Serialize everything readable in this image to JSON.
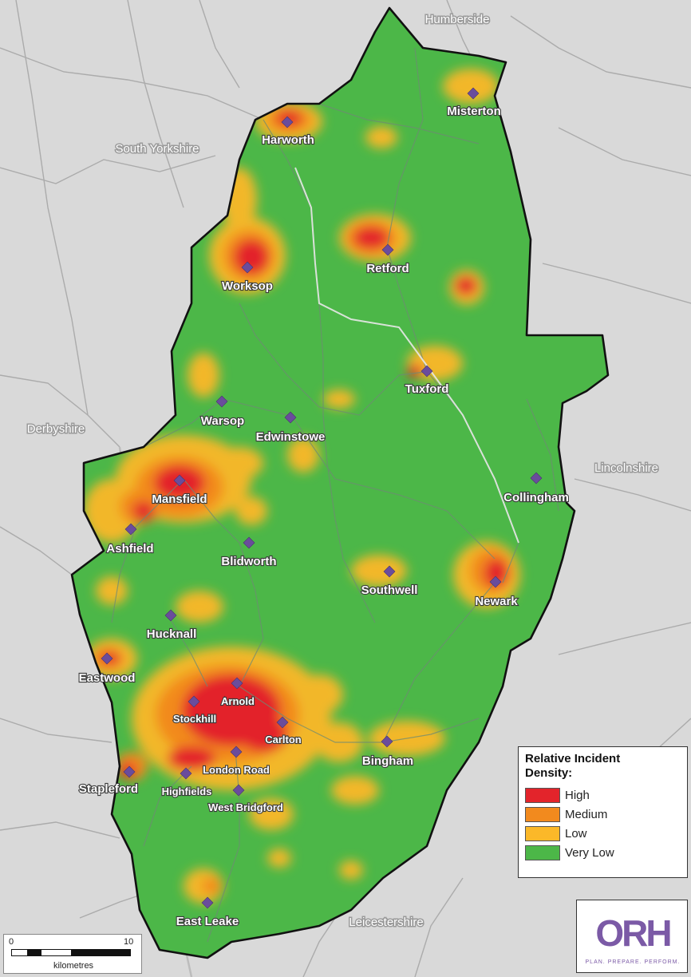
{
  "regions": [
    {
      "name": "Humberside"
    },
    {
      "name": "South Yorkshire"
    },
    {
      "name": "Derbyshire"
    },
    {
      "name": "Lincolnshire"
    },
    {
      "name": "Leicestershire"
    }
  ],
  "towns": [
    {
      "name": "Harworth"
    },
    {
      "name": "Misterton"
    },
    {
      "name": "Retford"
    },
    {
      "name": "Worksop"
    },
    {
      "name": "Tuxford"
    },
    {
      "name": "Warsop"
    },
    {
      "name": "Edwinstowe"
    },
    {
      "name": "Mansfield"
    },
    {
      "name": "Collingham"
    },
    {
      "name": "Ashfield"
    },
    {
      "name": "Blidworth"
    },
    {
      "name": "Southwell"
    },
    {
      "name": "Newark"
    },
    {
      "name": "Hucknall"
    },
    {
      "name": "Eastwood"
    },
    {
      "name": "Arnold"
    },
    {
      "name": "Stockhill"
    },
    {
      "name": "Carlton"
    },
    {
      "name": "Bingham"
    },
    {
      "name": "London Road"
    },
    {
      "name": "Stapleford"
    },
    {
      "name": "Highfields"
    },
    {
      "name": "West Bridgford"
    },
    {
      "name": "East Leake"
    }
  ],
  "legend": {
    "title_line1": "Relative Incident",
    "title_line2": "Density:",
    "items": [
      {
        "label": "High",
        "color": "#e3242b"
      },
      {
        "label": "Medium",
        "color": "#f28a1e"
      },
      {
        "label": "Low",
        "color": "#fbb829"
      },
      {
        "label": "Very Low",
        "color": "#4cb748"
      }
    ]
  },
  "scale_bar": {
    "start": "0",
    "end": "10",
    "unit": "kilometres"
  },
  "logo": {
    "mark": "ORH",
    "tagline": "PLAN. PREPARE. PERFORM."
  },
  "colors": {
    "background": "#d9d9d9",
    "county_fill": "#4cb748",
    "boundary": "#111111",
    "marker": "#6a4c9c",
    "road": "#a9a9a9"
  }
}
